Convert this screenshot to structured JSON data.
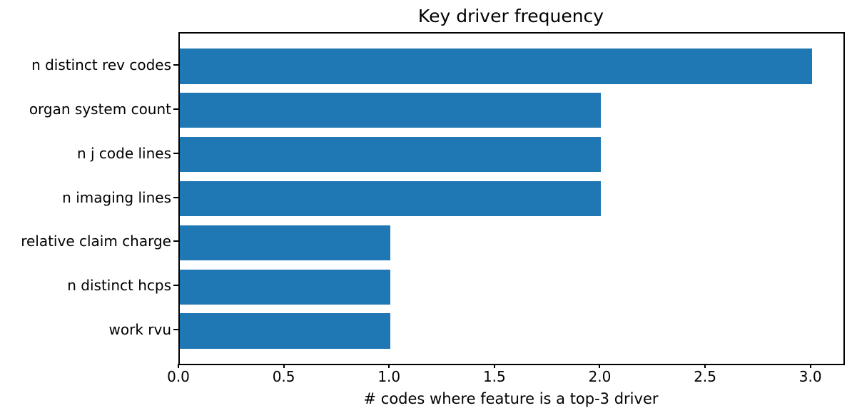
{
  "chart_data": {
    "type": "bar",
    "orientation": "horizontal",
    "title": "Key driver frequency",
    "xlabel": "# codes where feature is a top-3 driver",
    "ylabel": "",
    "categories": [
      "n distinct rev codes",
      "organ system count",
      "n j code lines",
      "n imaging lines",
      "relative claim charge",
      "n distinct hcps",
      "work rvu"
    ],
    "values": [
      3,
      2,
      2,
      2,
      1,
      1,
      1
    ],
    "xlim": [
      0,
      3.15
    ],
    "xticks": [
      0.0,
      0.5,
      1.0,
      1.5,
      2.0,
      2.5,
      3.0
    ],
    "xtick_labels": [
      "0.0",
      "0.5",
      "1.0",
      "1.5",
      "2.0",
      "2.5",
      "3.0"
    ],
    "bar_height_fraction": 0.8,
    "grid": false,
    "legend": null,
    "colors": {
      "bar": "#1f77b4",
      "text": "#000000",
      "spine": "#000000"
    }
  }
}
